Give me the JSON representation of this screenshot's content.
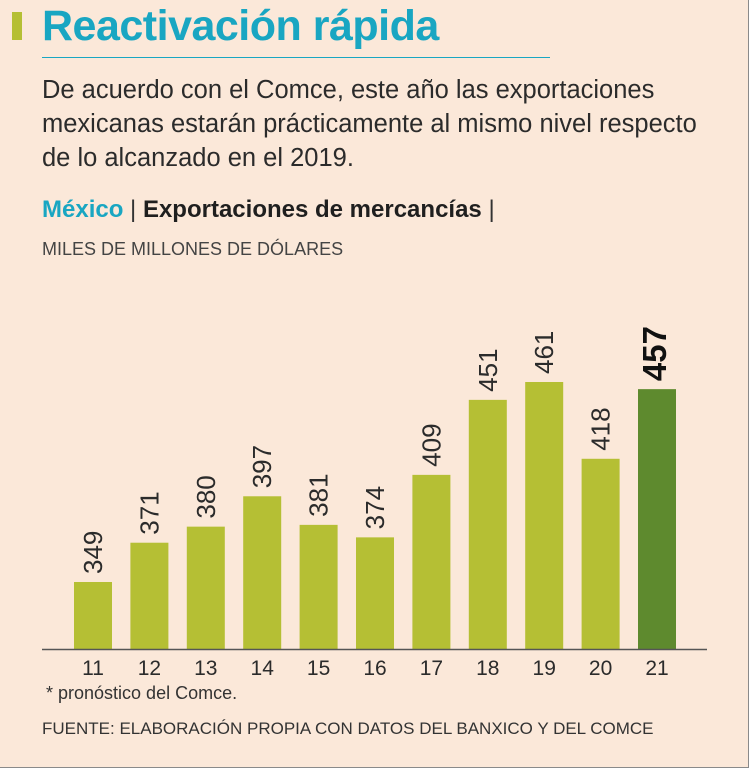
{
  "header": {
    "title": "Reactivación rápida",
    "subtitle": "De acuerdo con el Comce, este año las exportaciones mexicanas estarán prácticamente al mismo nivel respecto de lo alcanzado en el 2019."
  },
  "chart_heading": {
    "country": "México",
    "separator": "|",
    "title": "Exportaciones de mercancías",
    "trailing_separator": "|",
    "unit": "MILES DE MILLONES DE DÓLARES"
  },
  "chart_data": {
    "type": "bar",
    "title": "Exportaciones de mercancías",
    "ylabel": "Miles de millones de dólares",
    "xlabel": "",
    "categories": [
      "11",
      "12",
      "13",
      "14",
      "15",
      "16",
      "17",
      "18",
      "19",
      "20",
      "21"
    ],
    "values": [
      349,
      371,
      380,
      397,
      381,
      374,
      409,
      451,
      461,
      418,
      457
    ],
    "highlight_index": 10,
    "ylim": [
      300,
      480
    ],
    "grid": false,
    "colors": {
      "bar": "#b5bf34",
      "highlight": "#5e8a2e",
      "axis": "#555555",
      "label": "#2b2b2b",
      "highlight_label": "#111111"
    }
  },
  "footnote": "* pronóstico del Comce.",
  "source": "FUENTE: ELABORACIÓN PROPIA CON DATOS DEL BANXICO Y DEL COMCE",
  "colors": {
    "background": "#fbe8d9",
    "title": "#19a6c2",
    "accent_bar": "#b5bf34"
  }
}
